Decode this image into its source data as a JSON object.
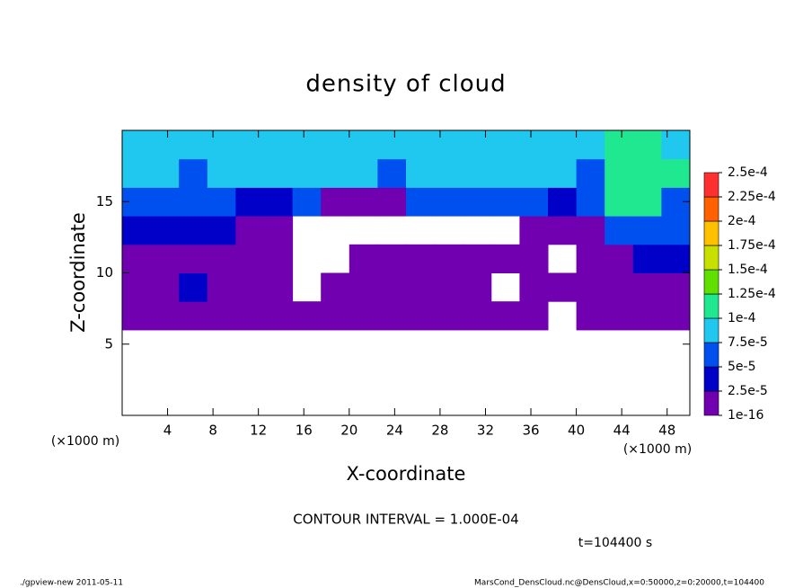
{
  "chart_data": {
    "type": "heatmap",
    "title": "density of cloud",
    "x_label": "X-coordinate",
    "y_label": "Z-coordinate",
    "x_unit": "(×1000 m)",
    "y_unit": "(×1000 m)",
    "annotation": "CONTOUR INTERVAL = 1.000E-04",
    "time_label": "t=104400 s",
    "footer_left": "./gpview-new  2011-05-11",
    "footer_right": "MarsCond_DensCloud.nc@DensCloud,x=0:50000,z=0:20000,t=104400",
    "xlim": [
      0,
      50
    ],
    "ylim": [
      0,
      20
    ],
    "xticks": [
      4,
      8,
      12,
      16,
      20,
      24,
      28,
      32,
      36,
      40,
      44,
      48
    ],
    "yticks": [
      5,
      10,
      15
    ],
    "x": [
      1.25,
      3.75,
      6.25,
      8.75,
      11.25,
      13.75,
      16.25,
      18.75,
      21.25,
      23.75,
      26.25,
      28.75,
      31.25,
      33.75,
      36.25,
      38.75,
      41.25,
      43.75,
      46.25,
      48.75
    ],
    "y": [
      1,
      3,
      5,
      7,
      9,
      11,
      13,
      15,
      17,
      19
    ],
    "values": [
      [
        null,
        null,
        null,
        null,
        null,
        null,
        null,
        null,
        null,
        null,
        null,
        null,
        null,
        null,
        null,
        null,
        null,
        null,
        null,
        null
      ],
      [
        null,
        null,
        null,
        null,
        null,
        null,
        null,
        null,
        null,
        null,
        null,
        null,
        null,
        null,
        null,
        null,
        null,
        null,
        null,
        null
      ],
      [
        null,
        null,
        null,
        null,
        null,
        null,
        null,
        null,
        null,
        null,
        null,
        null,
        null,
        null,
        null,
        null,
        null,
        null,
        null,
        null
      ],
      [
        1e-05,
        1e-05,
        1e-05,
        1e-05,
        1e-05,
        1e-05,
        1e-05,
        1e-05,
        1e-05,
        1e-05,
        1e-05,
        1e-05,
        1e-05,
        1e-05,
        1e-05,
        null,
        1e-05,
        1e-05,
        1e-05,
        1e-05
      ],
      [
        1e-05,
        1e-05,
        3.5e-05,
        1e-05,
        1e-05,
        1e-05,
        null,
        1e-05,
        1e-05,
        1e-05,
        1e-05,
        1e-05,
        1e-05,
        null,
        1e-05,
        1e-05,
        1e-05,
        1e-05,
        1e-05,
        1e-05
      ],
      [
        1e-05,
        1e-05,
        1e-05,
        1e-05,
        1e-05,
        1e-05,
        null,
        null,
        1e-05,
        1e-05,
        1e-05,
        1e-05,
        1e-05,
        1e-05,
        1e-05,
        null,
        1e-05,
        1e-05,
        3.5e-05,
        3.5e-05
      ],
      [
        3.5e-05,
        3.5e-05,
        3.5e-05,
        3.5e-05,
        1e-05,
        1e-05,
        null,
        null,
        null,
        null,
        null,
        null,
        null,
        null,
        1e-05,
        1e-05,
        1e-05,
        6e-05,
        6e-05,
        6e-05
      ],
      [
        6e-05,
        6e-05,
        6e-05,
        6e-05,
        3.5e-05,
        3.5e-05,
        6e-05,
        1e-05,
        1e-05,
        1e-05,
        6e-05,
        6e-05,
        6e-05,
        6e-05,
        6e-05,
        3.5e-05,
        6e-05,
        0.00011,
        0.00011,
        6e-05
      ],
      [
        8.5e-05,
        8.5e-05,
        6e-05,
        8.5e-05,
        8.5e-05,
        8.5e-05,
        8.5e-05,
        8.5e-05,
        8.5e-05,
        6e-05,
        8.5e-05,
        8.5e-05,
        8.5e-05,
        8.5e-05,
        8.5e-05,
        8.5e-05,
        6e-05,
        0.00011,
        0.00011,
        0.00011
      ],
      [
        8.5e-05,
        8.5e-05,
        8.5e-05,
        8.5e-05,
        8.5e-05,
        8.5e-05,
        8.5e-05,
        8.5e-05,
        8.5e-05,
        8.5e-05,
        8.5e-05,
        8.5e-05,
        8.5e-05,
        8.5e-05,
        8.5e-05,
        8.5e-05,
        8.5e-05,
        0.00011,
        0.00011,
        8.5e-05
      ]
    ],
    "levels": [
      {
        "value": 1e-16,
        "label": "1e-16"
      },
      {
        "value": 2.5e-05,
        "label": "2.5e-5"
      },
      {
        "value": 5e-05,
        "label": "5e-5"
      },
      {
        "value": 7.5e-05,
        "label": "7.5e-5"
      },
      {
        "value": 0.0001,
        "label": "1e-4"
      },
      {
        "value": 0.000125,
        "label": "1.25e-4"
      },
      {
        "value": 0.00015,
        "label": "1.5e-4"
      },
      {
        "value": 0.000175,
        "label": "1.75e-4"
      },
      {
        "value": 0.0002,
        "label": "2e-4"
      },
      {
        "value": 0.000225,
        "label": "2.25e-4"
      },
      {
        "value": 0.00025,
        "label": "2.5e-4"
      }
    ],
    "colors": [
      "#7000b0",
      "#0000c8",
      "#0050f0",
      "#20c8f0",
      "#20e890",
      "#60e000",
      "#c8e000",
      "#ffc000",
      "#ff6000",
      "#ff3030"
    ]
  }
}
